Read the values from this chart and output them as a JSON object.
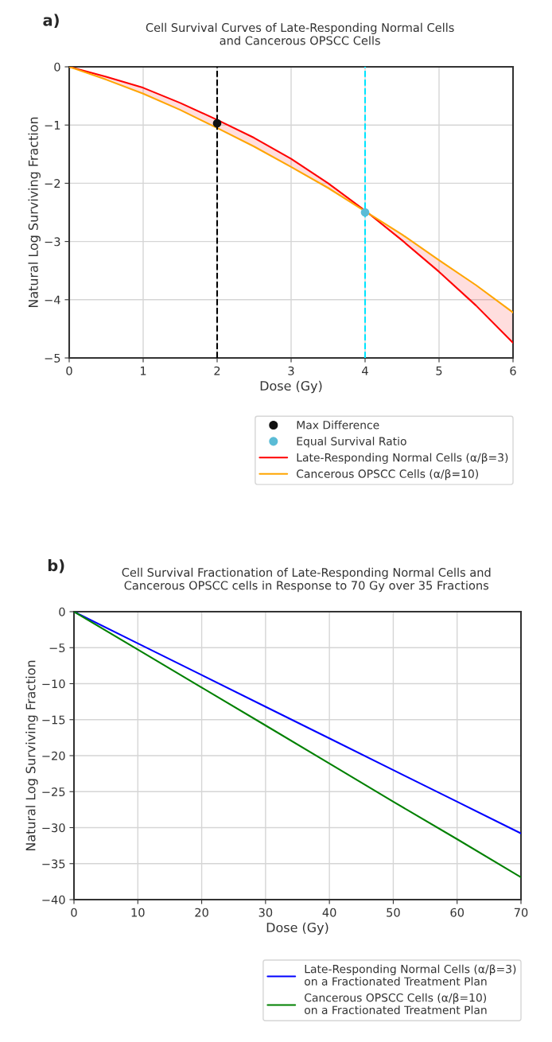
{
  "chart_data": [
    {
      "type": "line",
      "title": "Cell Survival Curves of Late-Responding Normal Cells\nand Cancerous OPSCC Cells",
      "xlabel": "Dose (Gy)",
      "ylabel": "Natural Log Surviving Fraction",
      "annotations": [
        "a)"
      ],
      "xlim": [
        0,
        6
      ],
      "ylim": [
        -5,
        0
      ],
      "xticks": [
        0,
        1,
        2,
        3,
        4,
        5,
        6
      ],
      "yticks": [
        -5,
        -4,
        -3,
        -2,
        -1,
        0
      ],
      "grid": true,
      "legend": "bottom",
      "ref_lines": [
        {
          "axis": "x",
          "value": 2,
          "color": "#000000",
          "line_style": "dashed"
        },
        {
          "axis": "x",
          "value": 4,
          "color": "#00e5ff",
          "line_style": "dashed"
        }
      ],
      "series": [
        {
          "name": "Max Difference",
          "type": "scatter",
          "marker": "circle",
          "color": "#111111",
          "x": [
            2
          ],
          "values": [
            -0.97
          ]
        },
        {
          "name": "Equal Survival Ratio",
          "type": "scatter",
          "marker": "circle",
          "color": "#5bbcd6",
          "x": [
            4
          ],
          "values": [
            -2.5
          ]
        },
        {
          "name": "Late-Responding Normal Cells (α/β=3)",
          "color": "#ff0000",
          "x": [
            0,
            0.5,
            1,
            1.5,
            2,
            2.5,
            3,
            3.5,
            4,
            4.5,
            5,
            5.5,
            6
          ],
          "values": [
            0,
            -0.17,
            -0.36,
            -0.62,
            -0.91,
            -1.22,
            -1.58,
            -2.0,
            -2.47,
            -2.98,
            -3.52,
            -4.1,
            -4.74
          ],
          "lower": [
            0,
            -0.22,
            -0.46,
            -0.74,
            -1.05,
            -1.37,
            -1.72,
            -2.08,
            -2.48,
            -2.98,
            -3.52,
            -4.1,
            -4.74
          ],
          "upper": [
            0,
            -0.17,
            -0.36,
            -0.62,
            -0.91,
            -1.22,
            -1.58,
            -2.0,
            -2.47,
            -2.88,
            -3.32,
            -3.75,
            -4.22
          ]
        },
        {
          "name": "Cancerous OPSCC Cells (α/β=10)",
          "color": "#ffa500",
          "x": [
            0,
            0.5,
            1,
            1.5,
            2,
            2.5,
            3,
            3.5,
            4,
            4.5,
            5,
            5.5,
            6
          ],
          "values": [
            0,
            -0.22,
            -0.46,
            -0.74,
            -1.05,
            -1.37,
            -1.72,
            -2.08,
            -2.48,
            -2.88,
            -3.32,
            -3.75,
            -4.22
          ]
        }
      ]
    },
    {
      "type": "line",
      "title": "Cell Survival Fractionation of Late-Responding Normal Cells and\nCancerous OPSCC cells in Response to 70 Gy over 35 Fractions",
      "xlabel": "Dose (Gy)",
      "ylabel": "Natural Log Surviving Fraction",
      "annotations": [
        "b)"
      ],
      "xlim": [
        0,
        70
      ],
      "ylim": [
        -40,
        0
      ],
      "xticks": [
        0,
        10,
        20,
        30,
        40,
        50,
        60,
        70
      ],
      "yticks": [
        -40,
        -35,
        -30,
        -25,
        -20,
        -15,
        -10,
        -5,
        0
      ],
      "grid": true,
      "legend": "bottom",
      "series": [
        {
          "name": "Late-Responding Normal Cells (α/β=3)\non a Fractionated Treatment Plan",
          "color": "#0000ff",
          "x": [
            0,
            10,
            20,
            30,
            40,
            50,
            60,
            70
          ],
          "values": [
            0,
            -4.4,
            -8.8,
            -13.2,
            -17.6,
            -22.0,
            -26.4,
            -30.8
          ]
        },
        {
          "name": "Cancerous OPSCC Cells (α/β=10)\non a Fractionated Treatment Plan",
          "color": "#008000",
          "x": [
            0,
            10,
            20,
            30,
            40,
            50,
            60,
            70
          ],
          "values": [
            0,
            -5.27,
            -10.54,
            -15.8,
            -21.1,
            -26.4,
            -31.6,
            -36.9
          ]
        }
      ]
    }
  ]
}
